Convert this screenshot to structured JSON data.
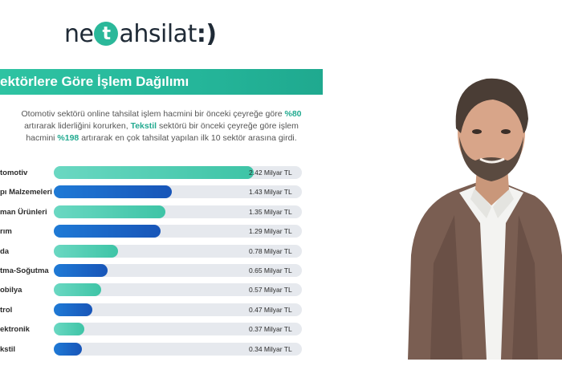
{
  "logo": {
    "part1": "ne",
    "circle": "t",
    "part2": "ahsilat",
    "sep": ":)"
  },
  "banner": {
    "title": "ektörlere Göre İşlem Dağılımı"
  },
  "description": {
    "t1": "Otomotiv sektörü online tahsilat işlem hacmini bir önceki çeyreğe göre ",
    "h1": "%80",
    "t2": " artırarak liderliğini korurken, ",
    "h2": "Tekstil",
    "t3": " sektörü bir önceki çeyreğe göre işlem hacmini ",
    "h3": "%198",
    "t4": " artırarak en çok tahsilat yapılan ilk 10 sektör arasına girdi."
  },
  "colors": {
    "accent": "#2bb89a",
    "bar_green": "#3ec4a6",
    "bar_blue": "#1855b8",
    "track": "#e6e9ee"
  },
  "chart_data": {
    "type": "bar",
    "orientation": "horizontal",
    "title": "ektörlere Göre İşlem Dağılımı",
    "unit": "Milyar TL",
    "categories": [
      "tomotiv",
      "pı Malzemeleri",
      "man Ürünleri",
      "rım",
      "da",
      "tma-Soğutma",
      "obilya",
      "trol",
      "ektronik",
      "kstil"
    ],
    "values": [
      2.42,
      1.43,
      1.35,
      1.29,
      0.78,
      0.65,
      0.57,
      0.47,
      0.37,
      0.34
    ],
    "value_labels": [
      "2.42 Milyar TL",
      "1.43 Milyar TL",
      "1.35 Milyar TL",
      "1.29 Milyar TL",
      "0.78 Milyar TL",
      "0.65 Milyar TL",
      "0.57 Milyar TL",
      "0.47 Milyar TL",
      "0.37 Milyar TL",
      "0.34 Milyar TL"
    ],
    "bar_colors": [
      "green",
      "blue",
      "green",
      "blue",
      "green",
      "blue",
      "green",
      "blue",
      "green",
      "blue"
    ],
    "xlim": [
      0,
      3.0
    ]
  }
}
